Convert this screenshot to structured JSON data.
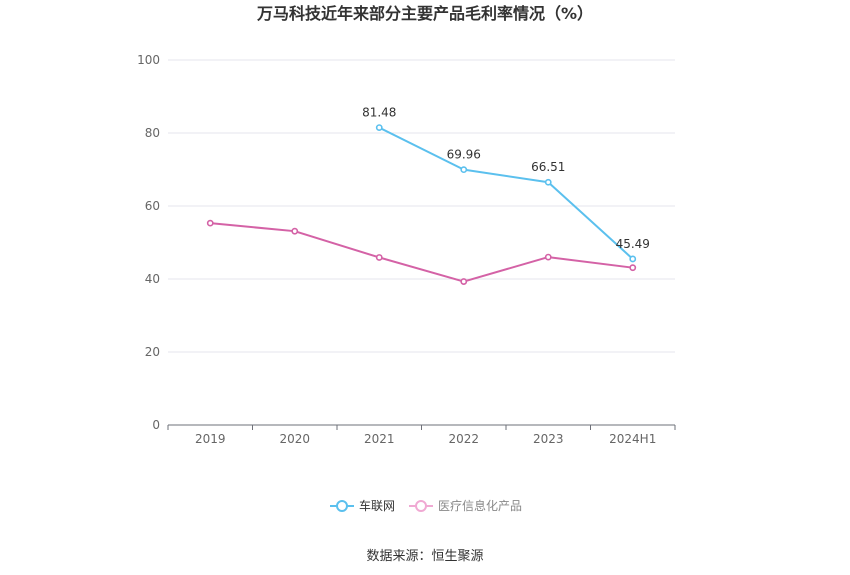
{
  "chart_data": {
    "type": "line",
    "title": "万马科技近年来部分主要产品毛利率情况（%）",
    "categories": [
      "2019",
      "2020",
      "2021",
      "2022",
      "2023",
      "2024H1"
    ],
    "ylim": [
      0,
      100
    ],
    "yticks": [
      "0",
      "20",
      "40",
      "60",
      "80",
      "100"
    ],
    "grid": true,
    "legend_position": "bottom",
    "series": [
      {
        "name": "车联网",
        "color": "#5bc0ee",
        "values": [
          null,
          null,
          81.48,
          69.96,
          66.51,
          45.49
        ],
        "labels": [
          "",
          "",
          "81.48",
          "69.96",
          "66.51",
          "45.49"
        ]
      },
      {
        "name": "医疗信息化产品",
        "color": "#d462a6",
        "values": [
          55.3,
          53.1,
          45.9,
          39.3,
          46.0,
          43.1
        ],
        "labels": [
          "",
          "",
          "",
          "",
          "",
          ""
        ]
      }
    ],
    "source": "数据来源：恒生聚源"
  }
}
